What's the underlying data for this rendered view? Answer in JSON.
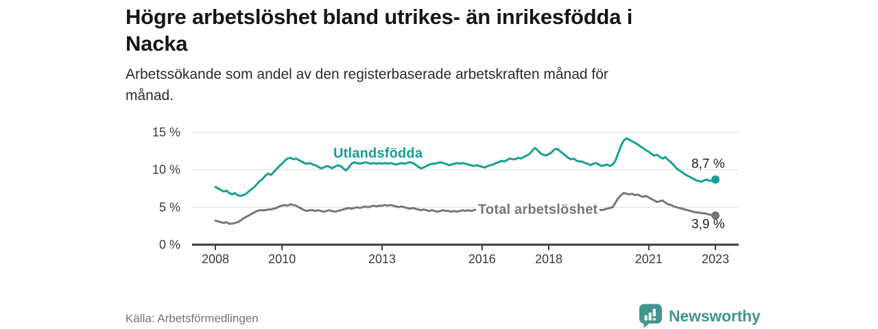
{
  "header": {
    "title_line1": "Högre arbetslöshet bland utrikes- än inrikesfödda i",
    "title_line2": "Nacka",
    "subtitle_line1": "Arbetssökande som andel av den registerbaserade arbetskraften månad för",
    "subtitle_line2": "månad."
  },
  "chart_data": {
    "type": "line",
    "title": "Högre arbetslöshet bland utrikes- än inrikesfödda i Nacka",
    "subtitle": "Arbetssökande som andel av den registerbaserade arbetskraften månad för månad.",
    "x_start": 2008,
    "x_step_months": 1,
    "x_end_label_year": 2023,
    "ylim": [
      0,
      15
    ],
    "yticks": [
      0,
      5,
      10,
      15
    ],
    "ytick_labels": [
      "0 %",
      "5 %",
      "10 %",
      "15 %"
    ],
    "xticks": [
      2008,
      2010,
      2013,
      2016,
      2018,
      2021,
      2023
    ],
    "xtick_labels": [
      "2008",
      "2010",
      "2013",
      "2016",
      "2018",
      "2021",
      "2023"
    ],
    "grid": "horizontal",
    "legend_position": "inline-labels",
    "series": [
      {
        "name": "Utlandsfödda",
        "label": "Utlandsfödda",
        "color": "#14a093",
        "end_label": "8,7 %",
        "end_value": 8.7,
        "values": [
          7.7,
          7.5,
          7.3,
          7.1,
          7.2,
          6.9,
          6.7,
          6.9,
          6.6,
          6.5,
          6.6,
          6.8,
          7.1,
          7.4,
          7.7,
          8.1,
          8.5,
          8.8,
          9.2,
          9.5,
          9.3,
          9.7,
          10.1,
          10.5,
          10.8,
          11.2,
          11.5,
          11.6,
          11.4,
          11.5,
          11.3,
          11.1,
          10.9,
          10.8,
          10.9,
          10.7,
          10.6,
          10.4,
          10.2,
          10.3,
          10.5,
          10.4,
          10.2,
          10.4,
          10.6,
          10.5,
          10.2,
          9.9,
          10.3,
          10.8,
          11.0,
          10.9,
          10.8,
          10.9,
          11.0,
          10.9,
          10.8,
          10.9,
          10.8,
          10.9,
          10.8,
          10.9,
          10.8,
          10.9,
          10.8,
          10.7,
          10.8,
          10.9,
          10.8,
          10.9,
          11.0,
          10.9,
          10.7,
          10.4,
          10.2,
          10.3,
          10.5,
          10.7,
          10.8,
          10.8,
          10.9,
          11.0,
          10.9,
          10.8,
          10.6,
          10.7,
          10.8,
          10.9,
          10.8,
          10.9,
          10.8,
          10.7,
          10.6,
          10.5,
          10.6,
          10.5,
          10.4,
          10.3,
          10.5,
          10.6,
          10.7,
          10.9,
          11.0,
          11.2,
          11.1,
          11.3,
          11.5,
          11.4,
          11.4,
          11.6,
          11.5,
          11.7,
          11.9,
          12.1,
          12.5,
          12.9,
          12.6,
          12.2,
          12.0,
          11.9,
          12.1,
          12.3,
          12.7,
          12.8,
          12.5,
          12.2,
          11.9,
          11.6,
          11.4,
          11.5,
          11.2,
          11.1,
          11.1,
          10.9,
          10.8,
          10.6,
          10.8,
          10.9,
          10.7,
          10.5,
          10.6,
          10.7,
          10.5,
          10.7,
          11.2,
          12.2,
          13.2,
          13.9,
          14.2,
          14.0,
          13.8,
          13.6,
          13.4,
          13.1,
          12.9,
          12.6,
          12.4,
          12.1,
          11.9,
          12.0,
          11.7,
          11.5,
          11.7,
          11.3,
          11.0,
          10.6,
          10.2,
          9.9,
          9.7,
          9.4,
          9.2,
          9.0,
          8.8,
          8.6,
          8.5,
          8.4,
          8.6,
          8.7,
          8.5,
          8.6,
          8.7
        ]
      },
      {
        "name": "Total arbetslöshet",
        "label": "Total arbetslöshet",
        "color": "#767676",
        "end_label": "3,9 %",
        "end_value": 3.9,
        "values": [
          3.2,
          3.1,
          3.0,
          2.9,
          3.0,
          2.8,
          2.8,
          2.9,
          3.0,
          3.2,
          3.5,
          3.7,
          3.9,
          4.1,
          4.3,
          4.5,
          4.6,
          4.6,
          4.6,
          4.7,
          4.7,
          4.8,
          4.9,
          5.1,
          5.2,
          5.3,
          5.2,
          5.4,
          5.3,
          5.2,
          5.0,
          4.8,
          4.6,
          4.5,
          4.6,
          4.6,
          4.5,
          4.6,
          4.5,
          4.4,
          4.5,
          4.6,
          4.5,
          4.4,
          4.5,
          4.6,
          4.7,
          4.8,
          4.9,
          4.8,
          4.9,
          5.0,
          4.9,
          5.0,
          5.1,
          5.0,
          5.1,
          5.2,
          5.1,
          5.2,
          5.2,
          5.3,
          5.2,
          5.3,
          5.2,
          5.1,
          5.0,
          5.1,
          5.0,
          4.9,
          4.8,
          4.9,
          4.8,
          4.7,
          4.6,
          4.7,
          4.6,
          4.5,
          4.6,
          4.5,
          4.4,
          4.5,
          4.6,
          4.5,
          4.5,
          4.4,
          4.5,
          4.4,
          4.5,
          4.6,
          4.5,
          4.6,
          4.5,
          4.6,
          4.7,
          4.6,
          4.6,
          4.5,
          4.6,
          4.5,
          4.4,
          4.5,
          4.4,
          4.5,
          4.4,
          4.5,
          4.4,
          4.5,
          4.4,
          4.4,
          4.3,
          4.4,
          4.3,
          4.4,
          4.3,
          4.2,
          4.3,
          4.3,
          4.4,
          4.3,
          4.3,
          4.4,
          4.3,
          4.2,
          4.3,
          4.2,
          4.3,
          4.4,
          4.3,
          4.4,
          4.5,
          4.4,
          4.5,
          4.4,
          4.5,
          4.6,
          4.5,
          4.6,
          4.7,
          4.6,
          4.7,
          4.8,
          4.9,
          5.0,
          5.6,
          6.2,
          6.6,
          6.9,
          6.8,
          6.7,
          6.8,
          6.6,
          6.7,
          6.5,
          6.4,
          6.5,
          6.3,
          6.1,
          5.9,
          5.7,
          5.8,
          5.9,
          5.6,
          5.4,
          5.3,
          5.1,
          5.0,
          4.9,
          4.8,
          4.7,
          4.6,
          4.5,
          4.4,
          4.3,
          4.3,
          4.2,
          4.2,
          4.1,
          4.0,
          4.0,
          3.9
        ]
      }
    ]
  },
  "footer": {
    "source": "Källa: Arbetsförmedlingen",
    "brand": "Newsworthy"
  },
  "colors": {
    "accent_teal": "#14a093",
    "line_gray": "#767676",
    "brand_teal": "#43958e",
    "gridline": "#d9d9d9",
    "axis": "#3a3a3a"
  }
}
